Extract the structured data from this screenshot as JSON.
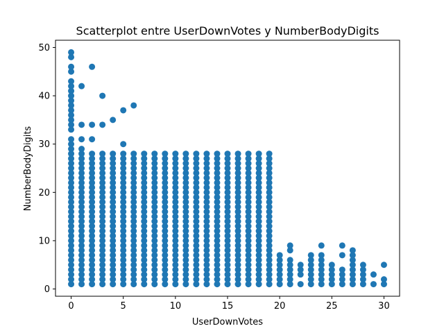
{
  "chart_data": {
    "type": "scatter",
    "title": "Scatterplot entre UserDownVotes y NumberBodyDigits",
    "xlabel": "UserDownVotes",
    "ylabel": "NumberBodyDigits",
    "xlim": [
      -1.5,
      31.5
    ],
    "ylim": [
      -1.5,
      51.5
    ],
    "x_ticks": [
      0,
      5,
      10,
      15,
      20,
      25,
      30
    ],
    "y_ticks": [
      0,
      10,
      20,
      30,
      40,
      50
    ],
    "grid": false,
    "legend": "none",
    "marker_color": "#1f77b4",
    "series": [
      {
        "columns": [
          {
            "x": 0,
            "from": 1,
            "to": 31
          },
          {
            "x": 1,
            "from": 1,
            "to": 28
          },
          {
            "x": 2,
            "from": 1,
            "to": 28
          },
          {
            "x": 3,
            "from": 1,
            "to": 28
          },
          {
            "x": 4,
            "from": 1,
            "to": 28
          },
          {
            "x": 5,
            "from": 1,
            "to": 28
          },
          {
            "x": 6,
            "from": 1,
            "to": 28
          },
          {
            "x": 7,
            "from": 1,
            "to": 28
          },
          {
            "x": 8,
            "from": 1,
            "to": 28
          },
          {
            "x": 9,
            "from": 1,
            "to": 28
          },
          {
            "x": 10,
            "from": 1,
            "to": 28
          },
          {
            "x": 11,
            "from": 1,
            "to": 28
          },
          {
            "x": 12,
            "from": 1,
            "to": 28
          },
          {
            "x": 13,
            "from": 1,
            "to": 28
          },
          {
            "x": 14,
            "from": 1,
            "to": 28
          },
          {
            "x": 15,
            "from": 1,
            "to": 28
          },
          {
            "x": 16,
            "from": 1,
            "to": 28
          },
          {
            "x": 17,
            "from": 1,
            "to": 28
          },
          {
            "x": 18,
            "from": 1,
            "to": 28
          },
          {
            "x": 19,
            "from": 1,
            "to": 28
          },
          {
            "x": 20,
            "from": 1,
            "to": 7
          },
          {
            "x": 21,
            "from": 1,
            "to": 6
          },
          {
            "x": 22,
            "from": 1,
            "to": 1
          },
          {
            "x": 22,
            "from": 3,
            "to": 5
          },
          {
            "x": 23,
            "from": 1,
            "to": 7
          },
          {
            "x": 24,
            "from": 1,
            "to": 7
          },
          {
            "x": 25,
            "from": 1,
            "to": 5
          },
          {
            "x": 26,
            "from": 1,
            "to": 3
          },
          {
            "x": 27,
            "from": 1,
            "to": 8
          },
          {
            "x": 28,
            "from": 1,
            "to": 5
          },
          {
            "x": 29,
            "from": 1,
            "to": 1
          },
          {
            "x": 30,
            "from": 1,
            "to": 2
          }
        ],
        "points": [
          [
            0,
            33
          ],
          [
            0,
            34
          ],
          [
            0,
            35
          ],
          [
            0,
            36
          ],
          [
            0,
            37
          ],
          [
            0,
            38
          ],
          [
            0,
            39
          ],
          [
            0,
            40
          ],
          [
            0,
            41
          ],
          [
            0,
            42
          ],
          [
            0,
            43
          ],
          [
            0,
            45
          ],
          [
            0,
            46
          ],
          [
            0,
            48
          ],
          [
            0,
            49
          ],
          [
            1,
            29
          ],
          [
            1,
            31
          ],
          [
            1,
            34
          ],
          [
            1,
            42
          ],
          [
            2,
            31
          ],
          [
            2,
            34
          ],
          [
            2,
            46
          ],
          [
            3,
            34
          ],
          [
            3,
            40
          ],
          [
            4,
            35
          ],
          [
            5,
            30
          ],
          [
            5,
            37
          ],
          [
            6,
            38
          ],
          [
            21,
            8
          ],
          [
            21,
            9
          ],
          [
            24,
            9
          ],
          [
            26,
            4
          ],
          [
            26,
            7
          ],
          [
            26,
            9
          ],
          [
            29,
            3
          ],
          [
            30,
            5
          ]
        ]
      }
    ]
  }
}
